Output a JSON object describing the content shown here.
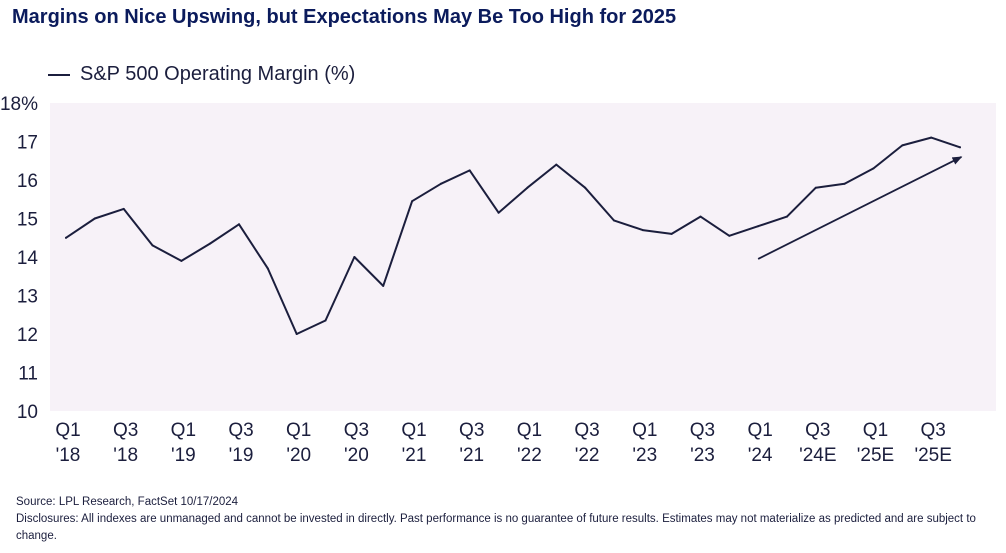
{
  "title": "Margins on Nice Upswing, but Expectations May Be Too High for 2025",
  "source": "Source: LPL Research, FactSet 10/17/2024",
  "disclosure": "Disclosures: All indexes are unmanaged and cannot be invested in directly. Past performance is no guarantee of future results. Estimates may not materialize as predicted and are subject to change.",
  "colors": {
    "line": "#1b1e3d",
    "plot_bg": "#f7f2f8",
    "title": "#0b1b5c"
  },
  "chart_data": {
    "type": "line",
    "title": "Margins on Nice Upswing, but Expectations May Be Too High for 2025",
    "xlabel": "",
    "ylabel": "",
    "ylim": [
      10,
      18
    ],
    "yticks": [
      10,
      11,
      12,
      13,
      14,
      15,
      16,
      17,
      18
    ],
    "ytick_labels": [
      "10",
      "11",
      "12",
      "13",
      "14",
      "15",
      "16",
      "17",
      "18%"
    ],
    "categories": [
      "Q1 '18",
      "Q2 '18",
      "Q3 '18",
      "Q4 '18",
      "Q1 '19",
      "Q2 '19",
      "Q3 '19",
      "Q4 '19",
      "Q1 '20",
      "Q2 '20",
      "Q3 '20",
      "Q4 '20",
      "Q1 '21",
      "Q2 '21",
      "Q3 '21",
      "Q4 '21",
      "Q1 '22",
      "Q2 '22",
      "Q3 '22",
      "Q4 '22",
      "Q1 '23",
      "Q2 '23",
      "Q3 '23",
      "Q4 '23",
      "Q1 '24",
      "Q2 '24",
      "Q3 '24E",
      "Q4 '24E",
      "Q1 '25E",
      "Q2 '25E",
      "Q3 '25E",
      "Q4 '25E"
    ],
    "tick_labels": [
      [
        "Q1",
        "'18"
      ],
      [
        "Q3",
        "'18"
      ],
      [
        "Q1",
        "'19"
      ],
      [
        "Q3",
        "'19"
      ],
      [
        "Q1",
        "'20"
      ],
      [
        "Q3",
        "'20"
      ],
      [
        "Q1",
        "'21"
      ],
      [
        "Q3",
        "'21"
      ],
      [
        "Q1",
        "'22"
      ],
      [
        "Q3",
        "'22"
      ],
      [
        "Q1",
        "'23"
      ],
      [
        "Q3",
        "'23"
      ],
      [
        "Q1",
        "'24"
      ],
      [
        "Q3",
        "'24E"
      ],
      [
        "Q1",
        "'25E"
      ],
      [
        "Q3",
        "'25E"
      ]
    ],
    "series": [
      {
        "name": "S&P 500 Operating Margin (%)",
        "values": [
          14.5,
          15.0,
          15.25,
          14.3,
          13.9,
          14.35,
          14.85,
          13.7,
          12.0,
          12.35,
          14.0,
          13.25,
          15.45,
          15.9,
          16.25,
          15.15,
          15.8,
          16.4,
          15.8,
          14.95,
          14.7,
          14.6,
          15.05,
          14.55,
          14.8,
          15.05,
          15.8,
          15.9,
          16.3,
          16.9,
          17.1,
          16.85
        ]
      }
    ],
    "annotations": [
      {
        "type": "trend-arrow",
        "from": {
          "index": 24,
          "value": 13.95
        },
        "to": {
          "index": 31.05,
          "value": 16.6
        }
      }
    ],
    "legend": {
      "position": "top-left"
    },
    "grid": false
  }
}
